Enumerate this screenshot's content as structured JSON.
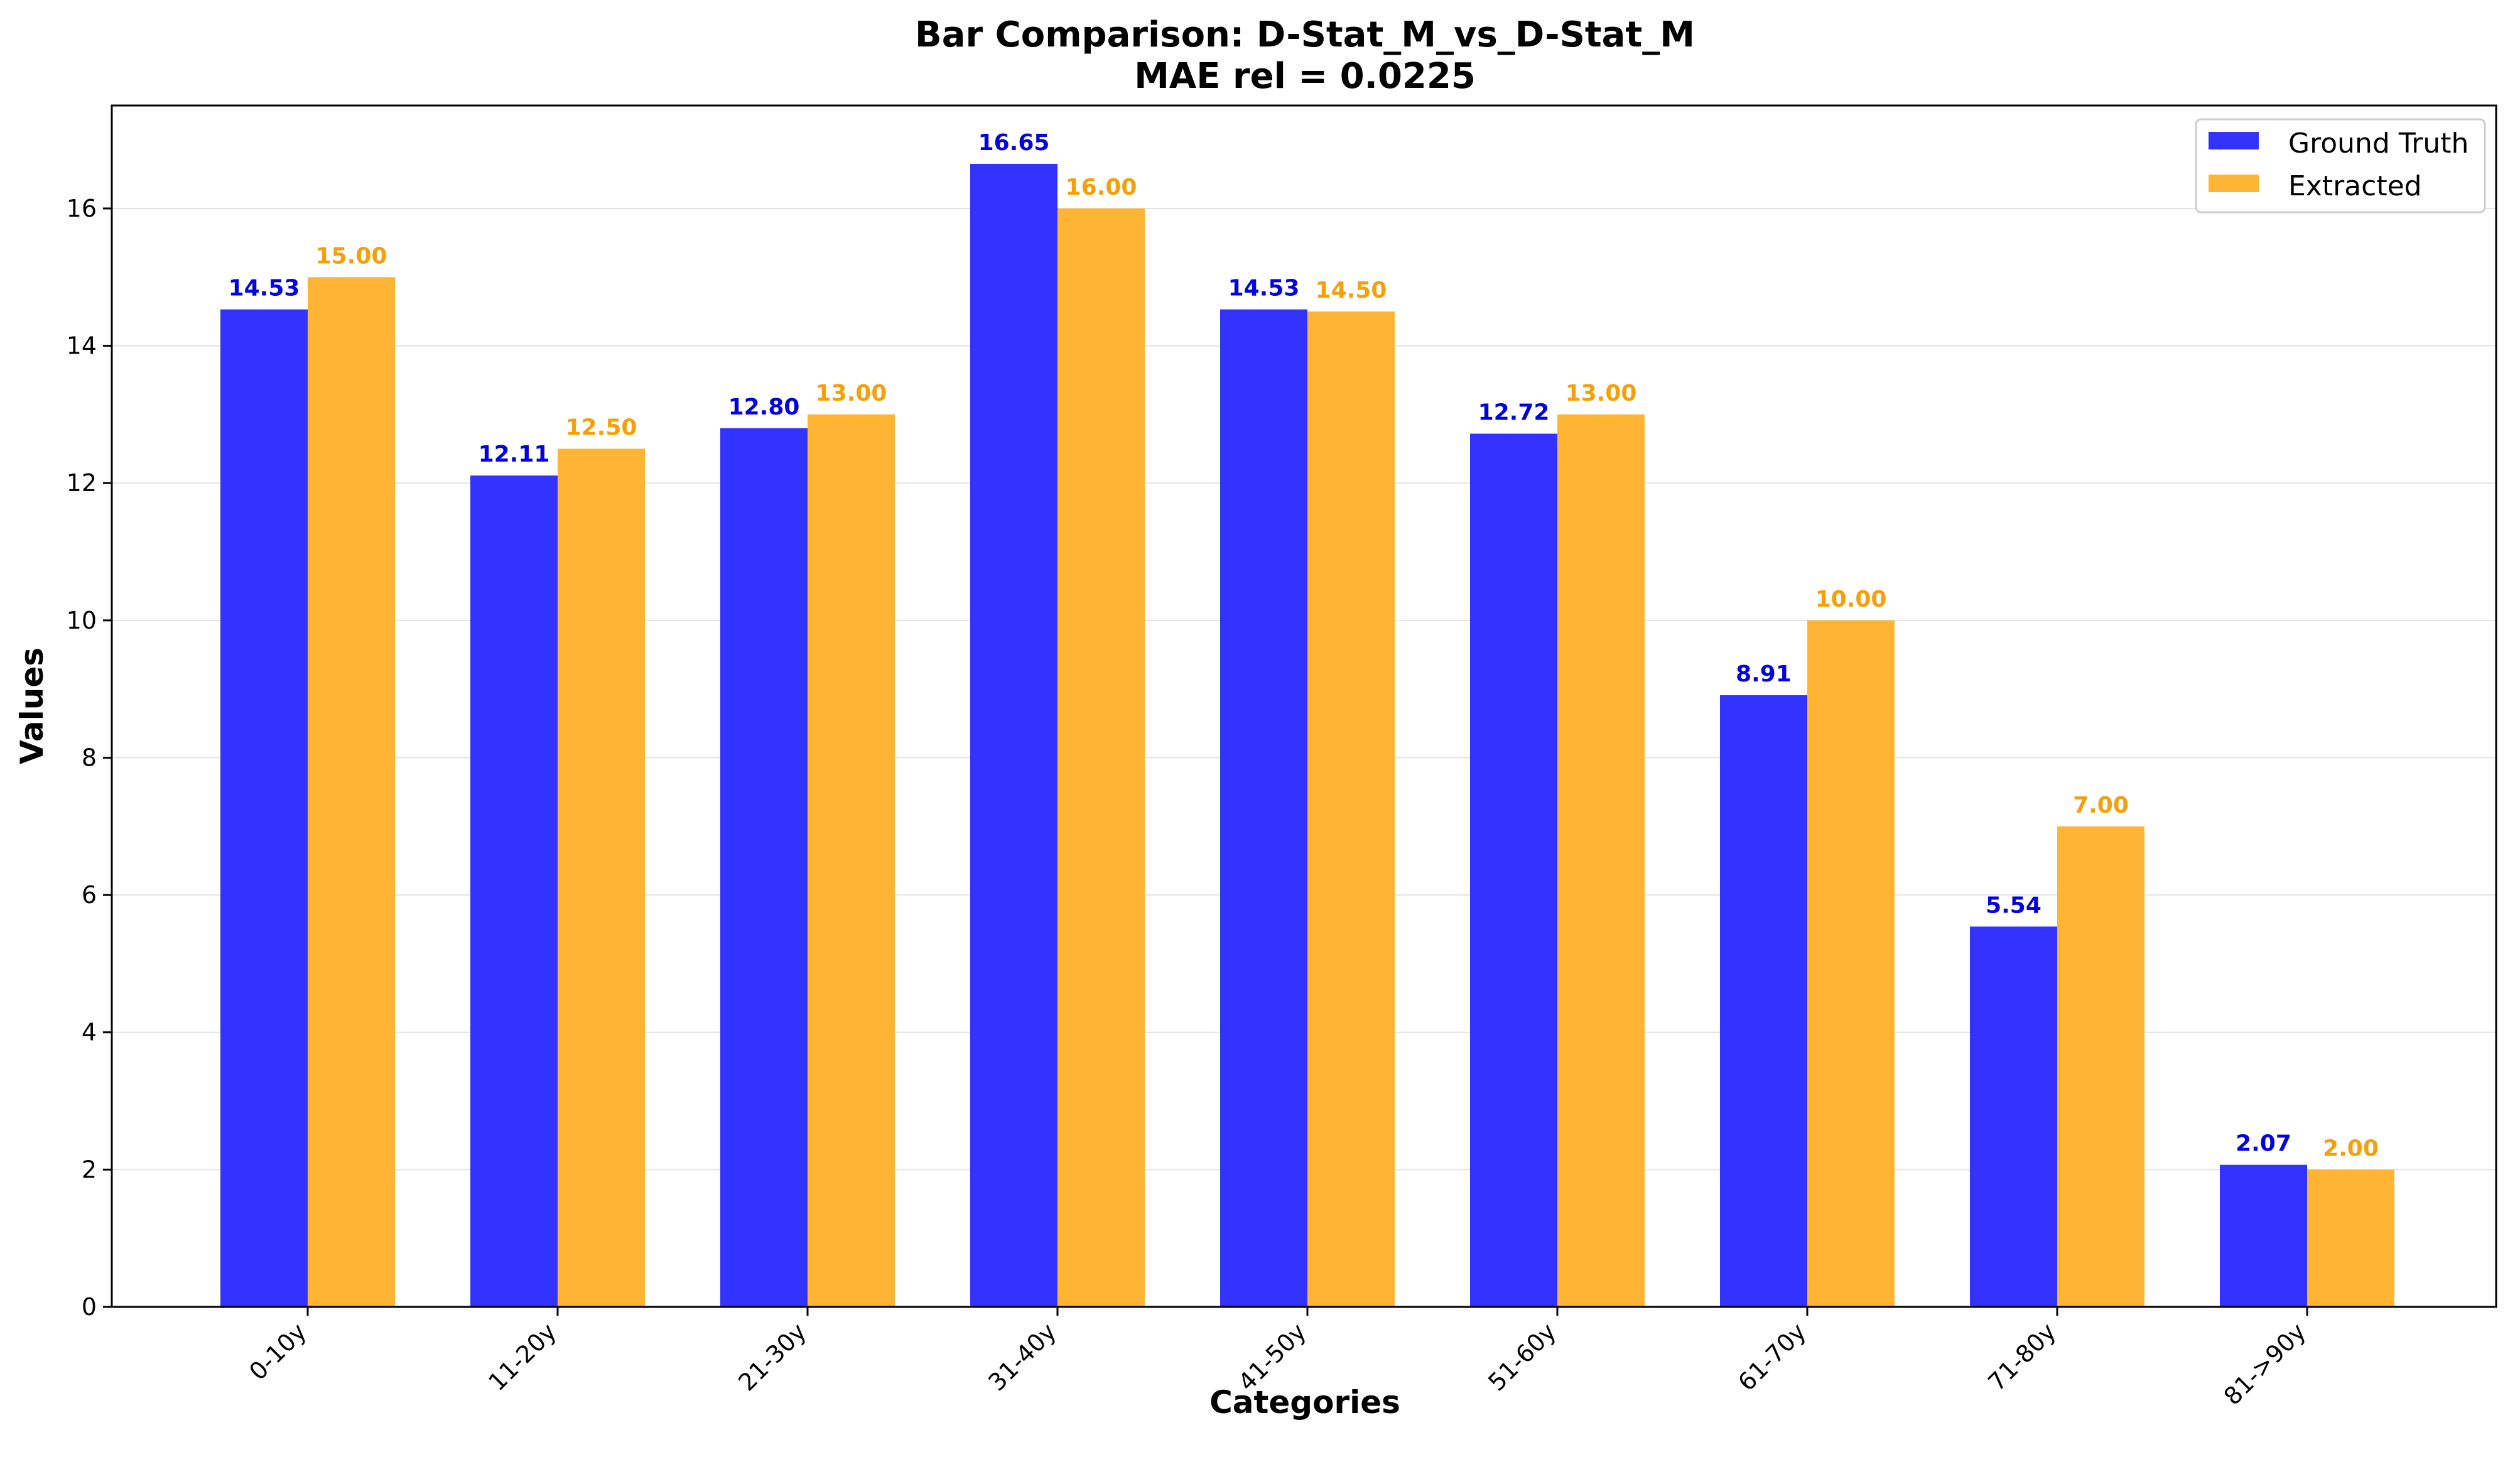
{
  "chart_data": {
    "type": "bar",
    "title": "Bar Comparison: D-Stat_M_vs_D-Stat_M",
    "subtitle": "MAE rel = 0.0225",
    "xlabel": "Categories",
    "ylabel": "Values",
    "ylim": [
      0,
      17.5
    ],
    "yticks": [
      0,
      2,
      4,
      6,
      8,
      10,
      12,
      14,
      16
    ],
    "grid": true,
    "legend_position": "top-right",
    "categories": [
      "0-10y",
      "11-20y",
      "21-30y",
      "31-40y",
      "41-50y",
      "51-60y",
      "61-70y",
      "71-80y",
      "81->90y"
    ],
    "series": [
      {
        "name": "Ground Truth",
        "color": "#3333ff",
        "label_color": "#0000e0",
        "values": [
          14.53,
          12.11,
          12.8,
          16.65,
          14.53,
          12.72,
          8.91,
          5.54,
          2.07
        ],
        "value_labels": [
          "14.53",
          "12.11",
          "12.80",
          "16.65",
          "14.53",
          "12.72",
          "8.91",
          "5.54",
          "2.07"
        ]
      },
      {
        "name": "Extracted",
        "color": "#ffb533",
        "label_color": "#f5a00a",
        "values": [
          15.0,
          12.5,
          13.0,
          16.0,
          14.5,
          13.0,
          10.0,
          7.0,
          2.0
        ],
        "value_labels": [
          "15.00",
          "12.50",
          "13.00",
          "16.00",
          "14.50",
          "13.00",
          "10.00",
          "7.00",
          "2.00"
        ]
      }
    ]
  }
}
